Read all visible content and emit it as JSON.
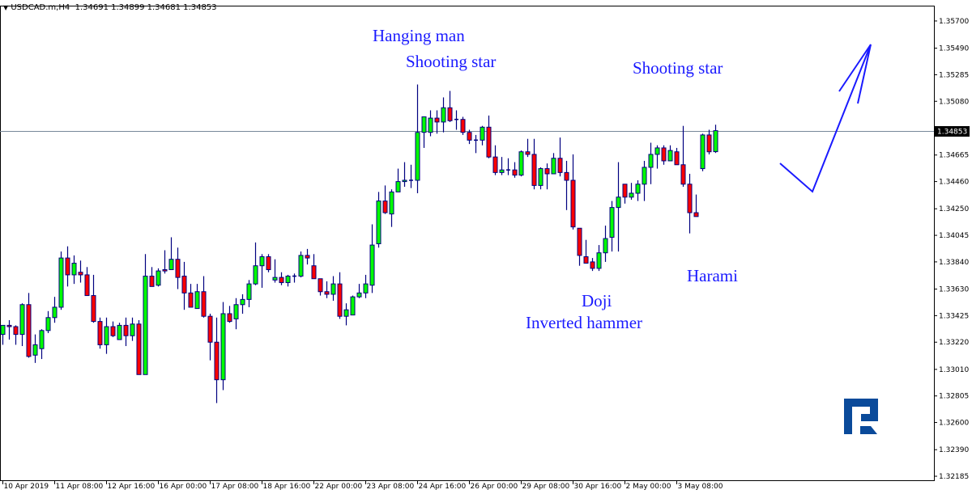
{
  "header": {
    "menu_icon": "triangle-down-icon",
    "symbol_info": "USDCAD.m,H4",
    "ohlc_text": "1.34691 1.34899 1.34681 1.34853"
  },
  "annotations": {
    "hanging_man": "Hanging man",
    "shooting_star_1": "Shooting star",
    "shooting_star_2": "Shooting star",
    "harami": "Harami",
    "doji": "Doji",
    "inverted_hammer": "Inverted hammer"
  },
  "colors": {
    "bull": "#00ff00",
    "bear": "#ff0000",
    "outline": "#000080",
    "annotation": "#1a1aff",
    "price_line": "#778899",
    "logo": "#0a4a9a"
  },
  "logo": {
    "icon": "roboforex-r-logo"
  },
  "chart_data": {
    "type": "candlestick",
    "symbol": "USDCAD.m",
    "timeframe": "H4",
    "ylim": [
      1.32154,
      1.35812
    ],
    "grid": false,
    "current_price": 1.34853,
    "current_price_label": "1.34853",
    "yticks": [
      "1.35700",
      "1.35490",
      "1.35285",
      "1.35080",
      "1.34665",
      "1.34460",
      "1.34250",
      "1.34045",
      "1.33840",
      "1.33630",
      "1.33425",
      "1.33220",
      "1.33010",
      "1.32805",
      "1.32600",
      "1.32390",
      "1.32185"
    ],
    "xticks": [
      {
        "index": 0,
        "label": "10 Apr 2019"
      },
      {
        "index": 8,
        "label": "11 Apr 08:00"
      },
      {
        "index": 16,
        "label": "12 Apr 16:00"
      },
      {
        "index": 24,
        "label": "16 Apr 00:00"
      },
      {
        "index": 32,
        "label": "17 Apr 08:00"
      },
      {
        "index": 40,
        "label": "18 Apr 16:00"
      },
      {
        "index": 48,
        "label": "22 Apr 00:00"
      },
      {
        "index": 56,
        "label": "23 Apr 08:00"
      },
      {
        "index": 64,
        "label": "24 Apr 16:00"
      },
      {
        "index": 72,
        "label": "26 Apr 00:00"
      },
      {
        "index": 80,
        "label": "29 Apr 08:00"
      },
      {
        "index": 88,
        "label": "30 Apr 16:00"
      },
      {
        "index": 96,
        "label": "2 May 00:00"
      },
      {
        "index": 104,
        "label": "3 May 08:00"
      }
    ],
    "ohlc_order": [
      "open",
      "high",
      "low",
      "close"
    ],
    "candles": [
      [
        1.3328,
        1.3335,
        1.332,
        1.3335
      ],
      [
        1.3335,
        1.3339,
        1.3324,
        1.3334
      ],
      [
        1.3334,
        1.3335,
        1.332,
        1.3328
      ],
      [
        1.3328,
        1.3352,
        1.3319,
        1.3351
      ],
      [
        1.3351,
        1.336,
        1.331,
        1.3311
      ],
      [
        1.3312,
        1.3328,
        1.3306,
        1.332
      ],
      [
        1.3317,
        1.3332,
        1.3309,
        1.3331
      ],
      [
        1.3331,
        1.3346,
        1.3329,
        1.3341
      ],
      [
        1.3341,
        1.3357,
        1.3337,
        1.3349
      ],
      [
        1.3349,
        1.3392,
        1.3347,
        1.3387
      ],
      [
        1.3387,
        1.3396,
        1.3365,
        1.3374
      ],
      [
        1.3374,
        1.3389,
        1.3367,
        1.3383
      ],
      [
        1.3376,
        1.3385,
        1.3368,
        1.3374
      ],
      [
        1.3374,
        1.338,
        1.3358,
        1.3358
      ],
      [
        1.3358,
        1.3374,
        1.3337,
        1.3338
      ],
      [
        1.3338,
        1.3341,
        1.3317,
        1.332
      ],
      [
        1.332,
        1.3341,
        1.3313,
        1.3334
      ],
      [
        1.3334,
        1.3338,
        1.3326,
        1.3327
      ],
      [
        1.3324,
        1.3337,
        1.3324,
        1.3335
      ],
      [
        1.3335,
        1.3341,
        1.3319,
        1.3327
      ],
      [
        1.3327,
        1.3341,
        1.3323,
        1.3336
      ],
      [
        1.3336,
        1.3339,
        1.3297,
        1.3297
      ],
      [
        1.3297,
        1.339,
        1.3297,
        1.3373
      ],
      [
        1.3373,
        1.338,
        1.3365,
        1.3365
      ],
      [
        1.3366,
        1.3379,
        1.3365,
        1.3377
      ],
      [
        1.3378,
        1.3393,
        1.3375,
        1.3377
      ],
      [
        1.3378,
        1.3403,
        1.3378,
        1.3386
      ],
      [
        1.3386,
        1.3395,
        1.3363,
        1.3372
      ],
      [
        1.3373,
        1.3384,
        1.3347,
        1.336
      ],
      [
        1.336,
        1.3367,
        1.3349,
        1.3349
      ],
      [
        1.3348,
        1.3367,
        1.3348,
        1.3361
      ],
      [
        1.3361,
        1.3373,
        1.3341,
        1.3342
      ],
      [
        1.3342,
        1.3344,
        1.3308,
        1.3322
      ],
      [
        1.3322,
        1.3341,
        1.3275,
        1.3293
      ],
      [
        1.3293,
        1.3353,
        1.3285,
        1.3344
      ],
      [
        1.3344,
        1.335,
        1.3337,
        1.3338
      ],
      [
        1.334,
        1.3356,
        1.3332,
        1.3351
      ],
      [
        1.3351,
        1.3359,
        1.3344,
        1.3355
      ],
      [
        1.3355,
        1.337,
        1.3349,
        1.3367
      ],
      [
        1.3367,
        1.3399,
        1.3366,
        1.3381
      ],
      [
        1.3381,
        1.339,
        1.3364,
        1.3388
      ],
      [
        1.3388,
        1.339,
        1.3376,
        1.3378
      ],
      [
        1.337,
        1.3386,
        1.3368,
        1.3372
      ],
      [
        1.3372,
        1.3376,
        1.3366,
        1.3368
      ],
      [
        1.3368,
        1.3374,
        1.3365,
        1.3373
      ],
      [
        1.3373,
        1.3375,
        1.3368,
        1.3373
      ],
      [
        1.3373,
        1.3392,
        1.3372,
        1.3389
      ],
      [
        1.3389,
        1.3394,
        1.3382,
        1.3387
      ],
      [
        1.3381,
        1.339,
        1.3371,
        1.3371
      ],
      [
        1.3371,
        1.3371,
        1.3358,
        1.3361
      ],
      [
        1.3361,
        1.3369,
        1.3356,
        1.3359
      ],
      [
        1.3359,
        1.3373,
        1.3354,
        1.3367
      ],
      [
        1.3367,
        1.3376,
        1.334,
        1.3342
      ],
      [
        1.3342,
        1.3352,
        1.3335,
        1.3347
      ],
      [
        1.3343,
        1.3358,
        1.3343,
        1.3357
      ],
      [
        1.3357,
        1.3367,
        1.3356,
        1.336
      ],
      [
        1.336,
        1.3374,
        1.3356,
        1.3367
      ],
      [
        1.3366,
        1.3413,
        1.336,
        1.3397
      ],
      [
        1.3398,
        1.3438,
        1.3395,
        1.3431
      ],
      [
        1.3431,
        1.3443,
        1.3421,
        1.3422
      ],
      [
        1.3421,
        1.344,
        1.3411,
        1.3438
      ],
      [
        1.3438,
        1.3456,
        1.3438,
        1.3446
      ],
      [
        1.3446,
        1.3461,
        1.3442,
        1.3447
      ],
      [
        1.3447,
        1.3459,
        1.3441,
        1.3447
      ],
      [
        1.3447,
        1.3521,
        1.3437,
        1.3484
      ],
      [
        1.3484,
        1.3496,
        1.3472,
        1.3496
      ],
      [
        1.3484,
        1.3501,
        1.3481,
        1.3495
      ],
      [
        1.3495,
        1.3501,
        1.3483,
        1.3492
      ],
      [
        1.3492,
        1.3511,
        1.3484,
        1.3503
      ],
      [
        1.3503,
        1.3516,
        1.3492,
        1.3493
      ],
      [
        1.3494,
        1.3501,
        1.3486,
        1.3494
      ],
      [
        1.3494,
        1.3496,
        1.3482,
        1.3484
      ],
      [
        1.3484,
        1.3486,
        1.3475,
        1.3478
      ],
      [
        1.3478,
        1.3482,
        1.3468,
        1.3478
      ],
      [
        1.3478,
        1.3489,
        1.3474,
        1.3488
      ],
      [
        1.3488,
        1.3497,
        1.3464,
        1.3465
      ],
      [
        1.3465,
        1.3474,
        1.3451,
        1.3453
      ],
      [
        1.3453,
        1.3465,
        1.3451,
        1.3455
      ],
      [
        1.3455,
        1.3464,
        1.3451,
        1.3455
      ],
      [
        1.3455,
        1.3461,
        1.3449,
        1.3451
      ],
      [
        1.3451,
        1.347,
        1.345,
        1.3469
      ],
      [
        1.3469,
        1.3479,
        1.3465,
        1.3467
      ],
      [
        1.3467,
        1.3479,
        1.344,
        1.3443
      ],
      [
        1.3443,
        1.3457,
        1.344,
        1.3456
      ],
      [
        1.3456,
        1.346,
        1.344,
        1.3452
      ],
      [
        1.3452,
        1.3468,
        1.3452,
        1.3464
      ],
      [
        1.3464,
        1.348,
        1.345,
        1.3453
      ],
      [
        1.3453,
        1.3462,
        1.3424,
        1.3447
      ],
      [
        1.3447,
        1.3467,
        1.3409,
        1.3411
      ],
      [
        1.341,
        1.341,
        1.3381,
        1.3389
      ],
      [
        1.3388,
        1.3401,
        1.3383,
        1.3383
      ],
      [
        1.3384,
        1.3387,
        1.3377,
        1.3379
      ],
      [
        1.3379,
        1.3397,
        1.3377,
        1.3391
      ],
      [
        1.3391,
        1.3412,
        1.3384,
        1.3402
      ],
      [
        1.3403,
        1.3431,
        1.3392,
        1.3426
      ],
      [
        1.3426,
        1.3461,
        1.3392,
        1.3434
      ],
      [
        1.3444,
        1.3444,
        1.3429,
        1.3434
      ],
      [
        1.3434,
        1.3445,
        1.3432,
        1.3437
      ],
      [
        1.3437,
        1.3447,
        1.3431,
        1.3444
      ],
      [
        1.3444,
        1.3462,
        1.3431,
        1.3457
      ],
      [
        1.3457,
        1.3476,
        1.3444,
        1.3467
      ],
      [
        1.3467,
        1.3474,
        1.3456,
        1.3472
      ],
      [
        1.3472,
        1.3474,
        1.3459,
        1.3462
      ],
      [
        1.3462,
        1.3474,
        1.3462,
        1.347
      ],
      [
        1.3469,
        1.3472,
        1.3459,
        1.3459
      ],
      [
        1.3459,
        1.3489,
        1.3442,
        1.3444
      ],
      [
        1.3444,
        1.3452,
        1.3406,
        1.3422
      ],
      [
        1.3422,
        1.3436,
        1.3419,
        1.3419
      ],
      [
        1.3456,
        1.3483,
        1.3454,
        1.3482
      ],
      [
        1.3482,
        1.3486,
        1.3467,
        1.3469
      ],
      [
        1.34691,
        1.34899,
        1.34681,
        1.34853
      ]
    ]
  }
}
